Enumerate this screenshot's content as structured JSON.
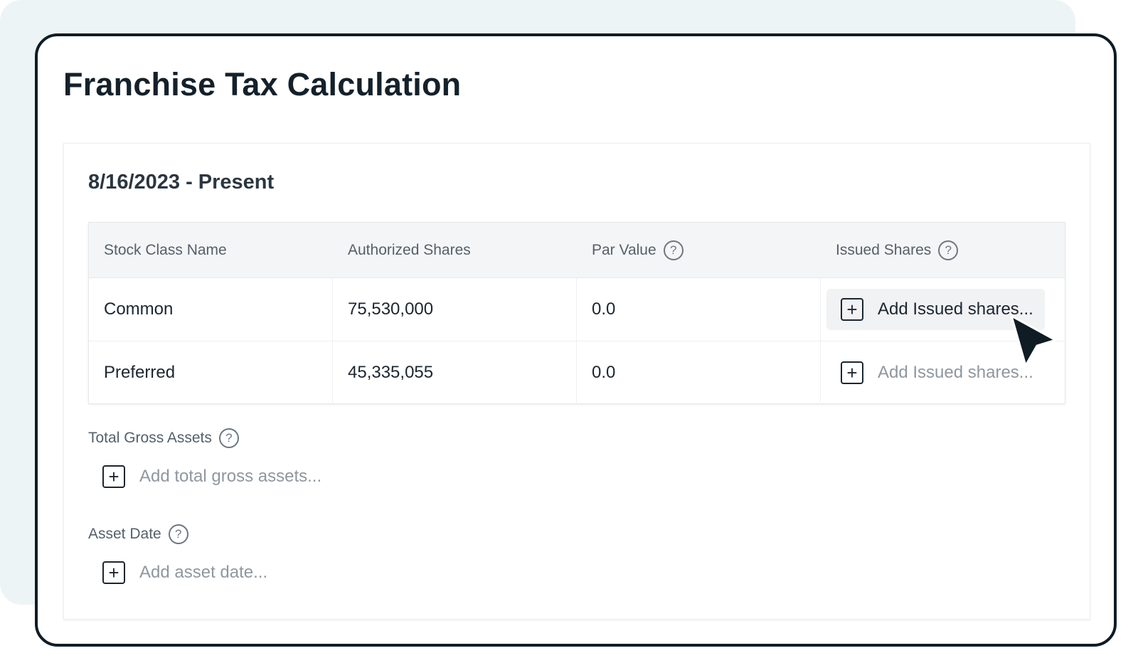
{
  "page": {
    "title": "Franchise Tax Calculation",
    "period": "8/16/2023 - Present"
  },
  "table": {
    "headers": [
      "Stock Class Name",
      "Authorized Shares",
      "Par Value",
      "Issued Shares"
    ],
    "rows": [
      {
        "name": "Common",
        "authorized": "75,530,000",
        "par": "0.0",
        "issued_placeholder": "Add Issued shares..."
      },
      {
        "name": "Preferred",
        "authorized": "45,335,055",
        "par": "0.0",
        "issued_placeholder": "Add Issued shares..."
      }
    ]
  },
  "fields": {
    "gross_assets": {
      "label": "Total Gross Assets",
      "placeholder": "Add total gross assets..."
    },
    "asset_date": {
      "label": "Asset Date",
      "placeholder": "Add asset date..."
    }
  },
  "icons": {
    "help": "?",
    "plus": "+"
  },
  "colors": {
    "frame": "#0f1c24",
    "backdrop": "#edf4f6",
    "placeholder": "#8f979e"
  }
}
